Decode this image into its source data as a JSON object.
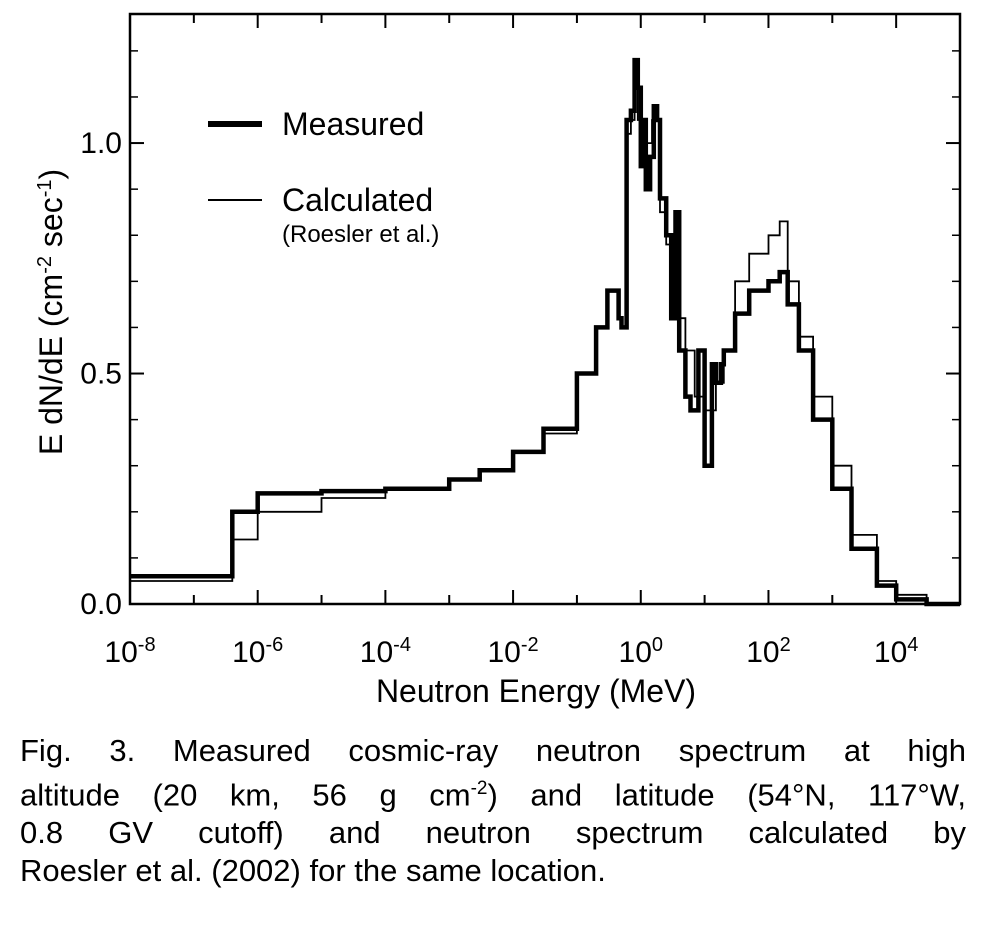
{
  "chart_data": {
    "type": "line",
    "x_scale": "log",
    "xlabel": "Neutron Energy  (MeV)",
    "ylabel": "E dN/dE  (cm",
    "ylabel_sup1": "-2",
    "ylabel_mid": " sec",
    "ylabel_sup2": "-1",
    "ylabel_end": ")",
    "xlim": [
      1e-08,
      100000.0
    ],
    "ylim": [
      0,
      1.28
    ],
    "x_tick_exponents": [
      -8,
      -6,
      -4,
      -2,
      0,
      2,
      4
    ],
    "x_tick_base": "10",
    "x_tick_exp_labels": [
      "-8",
      "-6",
      "-4",
      "-2",
      "0",
      "2",
      "4"
    ],
    "y_ticks": [
      0.0,
      0.5,
      1.0
    ],
    "y_tick_labels": [
      "0.0",
      "0.5",
      "1.0"
    ],
    "legend_position": "top-left",
    "series": [
      {
        "name": "Measured",
        "line": "thick",
        "x": [
          1e-08,
          4e-07,
          4e-07,
          1e-06,
          1e-05,
          0.0001,
          0.001,
          0.003,
          0.01,
          0.03,
          0.1,
          0.2,
          0.3,
          0.45,
          0.5,
          0.6,
          0.7,
          0.8,
          0.9,
          1.0,
          1.1,
          1.2,
          1.4,
          1.6,
          1.8,
          2.0,
          2.5,
          3.0,
          3.5,
          4.0,
          5.0,
          6.0,
          8.0,
          10,
          13,
          15,
          18,
          20,
          30,
          50,
          100,
          150,
          200,
          300,
          500,
          1000,
          2000,
          5000,
          10000,
          30000,
          100000
        ],
        "y": [
          0.06,
          0.06,
          0.2,
          0.24,
          0.245,
          0.25,
          0.27,
          0.29,
          0.33,
          0.38,
          0.5,
          0.6,
          0.68,
          0.62,
          0.6,
          1.05,
          1.07,
          1.18,
          1.12,
          0.95,
          1.05,
          0.9,
          0.97,
          1.08,
          1.05,
          0.88,
          0.8,
          0.62,
          0.85,
          0.55,
          0.45,
          0.42,
          0.55,
          0.3,
          0.52,
          0.48,
          0.52,
          0.55,
          0.63,
          0.68,
          0.7,
          0.72,
          0.65,
          0.55,
          0.4,
          0.25,
          0.12,
          0.04,
          0.01,
          0.0,
          0.0
        ]
      },
      {
        "name": "Calculated",
        "name_note": "(Roesler et al.)",
        "line": "thin",
        "x": [
          1e-08,
          4e-07,
          4e-07,
          1e-06,
          1e-05,
          0.0001,
          0.001,
          0.003,
          0.01,
          0.03,
          0.1,
          0.2,
          0.3,
          0.45,
          0.5,
          0.6,
          0.7,
          0.8,
          0.9,
          1.0,
          1.2,
          1.5,
          2.0,
          2.5,
          3.0,
          4.0,
          5.0,
          7.0,
          10,
          15,
          20,
          30,
          50,
          100,
          150,
          200,
          300,
          500,
          1000,
          2000,
          5000,
          10000,
          30000,
          100000
        ],
        "y": [
          0.05,
          0.05,
          0.14,
          0.2,
          0.23,
          0.25,
          0.27,
          0.29,
          0.33,
          0.37,
          0.5,
          0.6,
          0.68,
          0.62,
          0.6,
          1.02,
          1.05,
          1.13,
          1.05,
          0.98,
          1.0,
          1.05,
          0.85,
          0.78,
          0.7,
          0.62,
          0.55,
          0.45,
          0.42,
          0.48,
          0.55,
          0.7,
          0.76,
          0.8,
          0.83,
          0.7,
          0.58,
          0.45,
          0.3,
          0.15,
          0.05,
          0.02,
          0.0,
          0.0
        ]
      }
    ]
  },
  "caption": {
    "line1": "Fig. 3. Measured cosmic-ray neutron spectrum at high",
    "line2_a": "altitude (20 km, 56 g cm",
    "line2_sup": "-2",
    "line2_b": ") and latitude (54°N, 117°W,",
    "line3": "0.8 GV  cutoff)  and  neutron  spectrum  calculated  by",
    "line4": "Roesler et al. (2002) for the same location."
  }
}
